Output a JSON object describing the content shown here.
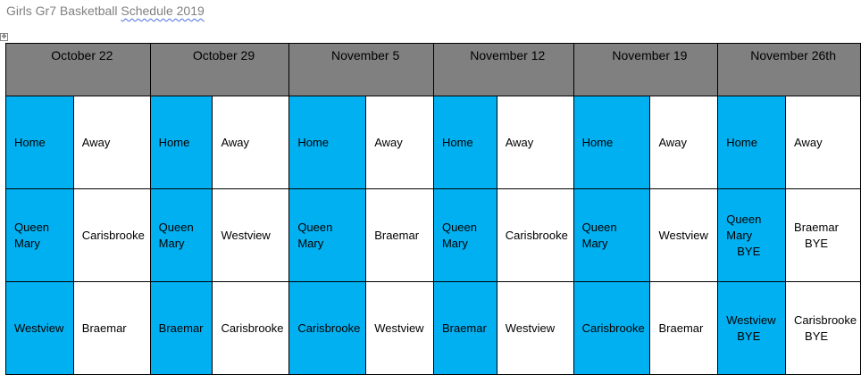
{
  "title": {
    "prefix": "Girls Gr7 Basketball ",
    "underlined": "Schedule  2019"
  },
  "colors": {
    "header": "#808080",
    "home": "#00b0f0"
  },
  "dates": [
    "October 22",
    "October 29",
    "November 5",
    "November 12",
    "November 19",
    "November 26th"
  ],
  "rows": [
    [
      [
        "Home",
        ""
      ],
      [
        "Away",
        ""
      ],
      [
        "Home",
        ""
      ],
      [
        "Away",
        ""
      ],
      [
        "Home",
        ""
      ],
      [
        "Away",
        ""
      ],
      [
        "Home",
        ""
      ],
      [
        "Away",
        ""
      ],
      [
        "Home",
        ""
      ],
      [
        "Away",
        ""
      ],
      [
        "Home",
        ""
      ],
      [
        "Away",
        ""
      ]
    ],
    [
      [
        "Queen Mary",
        ""
      ],
      [
        "Carisbrooke",
        ""
      ],
      [
        "Queen Mary",
        ""
      ],
      [
        "Westview",
        ""
      ],
      [
        "Queen Mary",
        ""
      ],
      [
        "Braemar",
        ""
      ],
      [
        "Queen Mary",
        ""
      ],
      [
        "Carisbrooke",
        ""
      ],
      [
        "Queen Mary",
        ""
      ],
      [
        "Westview",
        ""
      ],
      [
        "Queen Mary",
        "BYE"
      ],
      [
        "Braemar",
        "BYE"
      ]
    ],
    [
      [
        "Westview",
        ""
      ],
      [
        "Braemar",
        ""
      ],
      [
        "Braemar",
        ""
      ],
      [
        "Carisbrooke",
        ""
      ],
      [
        "Carisbrooke",
        ""
      ],
      [
        "Westview",
        ""
      ],
      [
        "Braemar",
        ""
      ],
      [
        "Westview",
        ""
      ],
      [
        "Carisbrooke",
        ""
      ],
      [
        "Braemar",
        ""
      ],
      [
        "Westview",
        "BYE"
      ],
      [
        "Carisbrooke",
        "BYE"
      ]
    ]
  ]
}
